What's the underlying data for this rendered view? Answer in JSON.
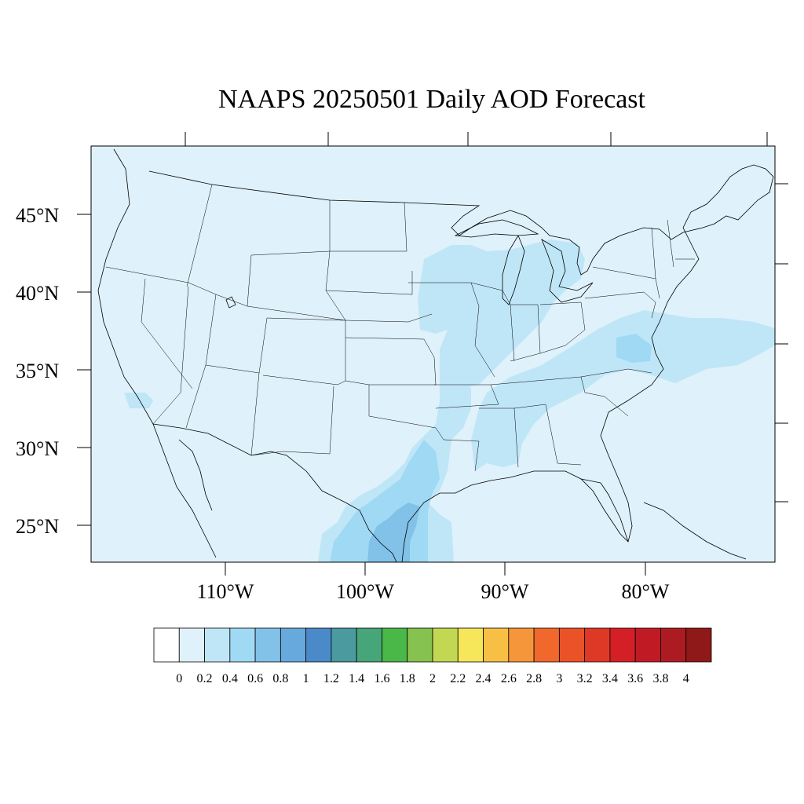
{
  "title": "NAAPS 20250501 Daily AOD Forecast",
  "map": {
    "projection": "lambert-like",
    "ocean_color": "#dff1fa",
    "lat_labels": [
      "45°N",
      "40°N",
      "35°N",
      "30°N",
      "25°N"
    ],
    "lon_labels": [
      "110°W",
      "100°W",
      "90°W",
      "80°W"
    ],
    "aod_regions": [
      {
        "name": "great-lakes-midwest",
        "aod_range": "0.2-0.4",
        "color": "#bfe6f7"
      },
      {
        "name": "mid-atlantic-plume",
        "aod_range": "0.2-0.4",
        "color": "#bfe6f7"
      },
      {
        "name": "lower-mississippi-valley",
        "aod_range": "0.2-0.4",
        "color": "#bfe6f7"
      },
      {
        "name": "south-texas-gulf",
        "aod_range": "0.4-0.6",
        "color": "#a0d9f3"
      },
      {
        "name": "south-texas-core",
        "aod_range": "0.6-0.8",
        "color": "#82c1e8"
      },
      {
        "name": "baja-spot",
        "aod_range": "0.2-0.4",
        "color": "#bfe6f7"
      }
    ]
  },
  "colorbar": {
    "colors": [
      "#ffffff",
      "#dff1fa",
      "#bfe6f7",
      "#a0d9f3",
      "#82c1e8",
      "#67a9dc",
      "#4a8ac9",
      "#4a9aa0",
      "#46a679",
      "#4ab749",
      "#86c24f",
      "#c2d853",
      "#f5e65a",
      "#f7c045",
      "#f6963a",
      "#f1682c",
      "#ea5227",
      "#de3927",
      "#d41f26",
      "#c01b25",
      "#ad1b22",
      "#8f1818"
    ],
    "labels": [
      "0",
      "0.2",
      "0.4",
      "0.6",
      "0.8",
      "1",
      "1.2",
      "1.4",
      "1.6",
      "1.8",
      "2",
      "2.2",
      "2.4",
      "2.6",
      "2.8",
      "3",
      "3.2",
      "3.4",
      "3.6",
      "3.8",
      "4"
    ]
  }
}
